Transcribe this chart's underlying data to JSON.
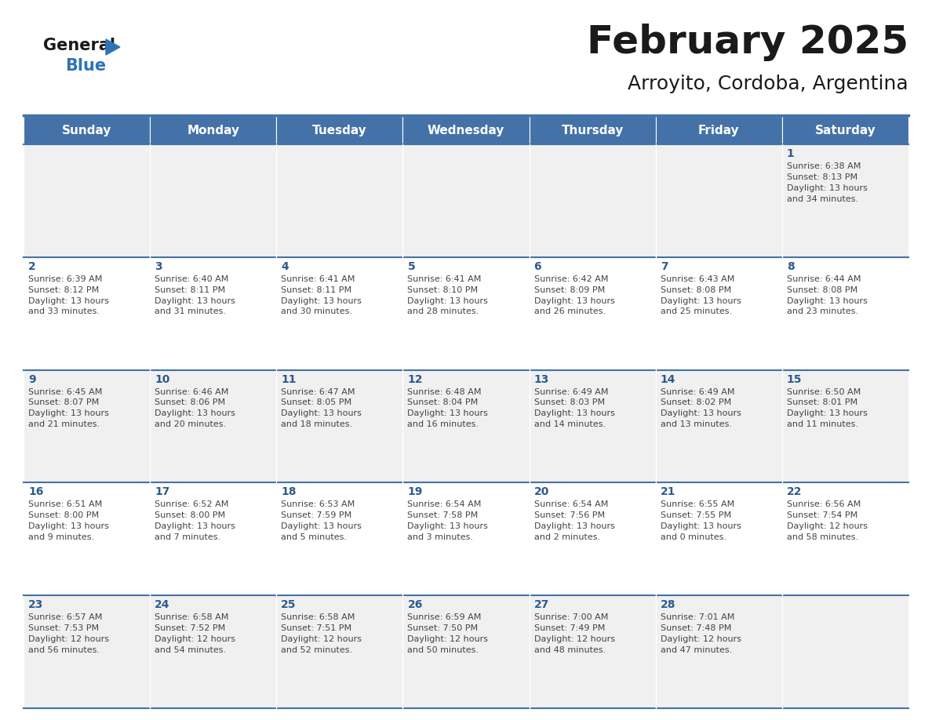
{
  "title": "February 2025",
  "subtitle": "Arroyito, Cordoba, Argentina",
  "days_of_week": [
    "Sunday",
    "Monday",
    "Tuesday",
    "Wednesday",
    "Thursday",
    "Friday",
    "Saturday"
  ],
  "header_bg": "#4472A8",
  "header_text": "#FFFFFF",
  "row_bg_odd": "#F0F0F0",
  "row_bg_even": "#FFFFFF",
  "text_color": "#444444",
  "day_num_color": "#2E5A8E",
  "border_color": "#4472A8",
  "line_color": "#4472A8",
  "calendar_data": [
    [
      null,
      null,
      null,
      null,
      null,
      null,
      {
        "day": 1,
        "sunrise": "6:38 AM",
        "sunset": "8:13 PM",
        "daylight": "13 hours",
        "daylight2": "and 34 minutes."
      }
    ],
    [
      {
        "day": 2,
        "sunrise": "6:39 AM",
        "sunset": "8:12 PM",
        "daylight": "13 hours",
        "daylight2": "and 33 minutes."
      },
      {
        "day": 3,
        "sunrise": "6:40 AM",
        "sunset": "8:11 PM",
        "daylight": "13 hours",
        "daylight2": "and 31 minutes."
      },
      {
        "day": 4,
        "sunrise": "6:41 AM",
        "sunset": "8:11 PM",
        "daylight": "13 hours",
        "daylight2": "and 30 minutes."
      },
      {
        "day": 5,
        "sunrise": "6:41 AM",
        "sunset": "8:10 PM",
        "daylight": "13 hours",
        "daylight2": "and 28 minutes."
      },
      {
        "day": 6,
        "sunrise": "6:42 AM",
        "sunset": "8:09 PM",
        "daylight": "13 hours",
        "daylight2": "and 26 minutes."
      },
      {
        "day": 7,
        "sunrise": "6:43 AM",
        "sunset": "8:08 PM",
        "daylight": "13 hours",
        "daylight2": "and 25 minutes."
      },
      {
        "day": 8,
        "sunrise": "6:44 AM",
        "sunset": "8:08 PM",
        "daylight": "13 hours",
        "daylight2": "and 23 minutes."
      }
    ],
    [
      {
        "day": 9,
        "sunrise": "6:45 AM",
        "sunset": "8:07 PM",
        "daylight": "13 hours",
        "daylight2": "and 21 minutes."
      },
      {
        "day": 10,
        "sunrise": "6:46 AM",
        "sunset": "8:06 PM",
        "daylight": "13 hours",
        "daylight2": "and 20 minutes."
      },
      {
        "day": 11,
        "sunrise": "6:47 AM",
        "sunset": "8:05 PM",
        "daylight": "13 hours",
        "daylight2": "and 18 minutes."
      },
      {
        "day": 12,
        "sunrise": "6:48 AM",
        "sunset": "8:04 PM",
        "daylight": "13 hours",
        "daylight2": "and 16 minutes."
      },
      {
        "day": 13,
        "sunrise": "6:49 AM",
        "sunset": "8:03 PM",
        "daylight": "13 hours",
        "daylight2": "and 14 minutes."
      },
      {
        "day": 14,
        "sunrise": "6:49 AM",
        "sunset": "8:02 PM",
        "daylight": "13 hours",
        "daylight2": "and 13 minutes."
      },
      {
        "day": 15,
        "sunrise": "6:50 AM",
        "sunset": "8:01 PM",
        "daylight": "13 hours",
        "daylight2": "and 11 minutes."
      }
    ],
    [
      {
        "day": 16,
        "sunrise": "6:51 AM",
        "sunset": "8:00 PM",
        "daylight": "13 hours",
        "daylight2": "and 9 minutes."
      },
      {
        "day": 17,
        "sunrise": "6:52 AM",
        "sunset": "8:00 PM",
        "daylight": "13 hours",
        "daylight2": "and 7 minutes."
      },
      {
        "day": 18,
        "sunrise": "6:53 AM",
        "sunset": "7:59 PM",
        "daylight": "13 hours",
        "daylight2": "and 5 minutes."
      },
      {
        "day": 19,
        "sunrise": "6:54 AM",
        "sunset": "7:58 PM",
        "daylight": "13 hours",
        "daylight2": "and 3 minutes."
      },
      {
        "day": 20,
        "sunrise": "6:54 AM",
        "sunset": "7:56 PM",
        "daylight": "13 hours",
        "daylight2": "and 2 minutes."
      },
      {
        "day": 21,
        "sunrise": "6:55 AM",
        "sunset": "7:55 PM",
        "daylight": "13 hours",
        "daylight2": "and 0 minutes."
      },
      {
        "day": 22,
        "sunrise": "6:56 AM",
        "sunset": "7:54 PM",
        "daylight": "12 hours",
        "daylight2": "and 58 minutes."
      }
    ],
    [
      {
        "day": 23,
        "sunrise": "6:57 AM",
        "sunset": "7:53 PM",
        "daylight": "12 hours",
        "daylight2": "and 56 minutes."
      },
      {
        "day": 24,
        "sunrise": "6:58 AM",
        "sunset": "7:52 PM",
        "daylight": "12 hours",
        "daylight2": "and 54 minutes."
      },
      {
        "day": 25,
        "sunrise": "6:58 AM",
        "sunset": "7:51 PM",
        "daylight": "12 hours",
        "daylight2": "and 52 minutes."
      },
      {
        "day": 26,
        "sunrise": "6:59 AM",
        "sunset": "7:50 PM",
        "daylight": "12 hours",
        "daylight2": "and 50 minutes."
      },
      {
        "day": 27,
        "sunrise": "7:00 AM",
        "sunset": "7:49 PM",
        "daylight": "12 hours",
        "daylight2": "and 48 minutes."
      },
      {
        "day": 28,
        "sunrise": "7:01 AM",
        "sunset": "7:48 PM",
        "daylight": "12 hours",
        "daylight2": "and 47 minutes."
      },
      null
    ]
  ],
  "fig_width": 11.88,
  "fig_height": 9.18,
  "dpi": 100,
  "title_fontsize": 36,
  "subtitle_fontsize": 18,
  "header_fontsize": 11,
  "day_num_fontsize": 10,
  "cell_text_fontsize": 8
}
